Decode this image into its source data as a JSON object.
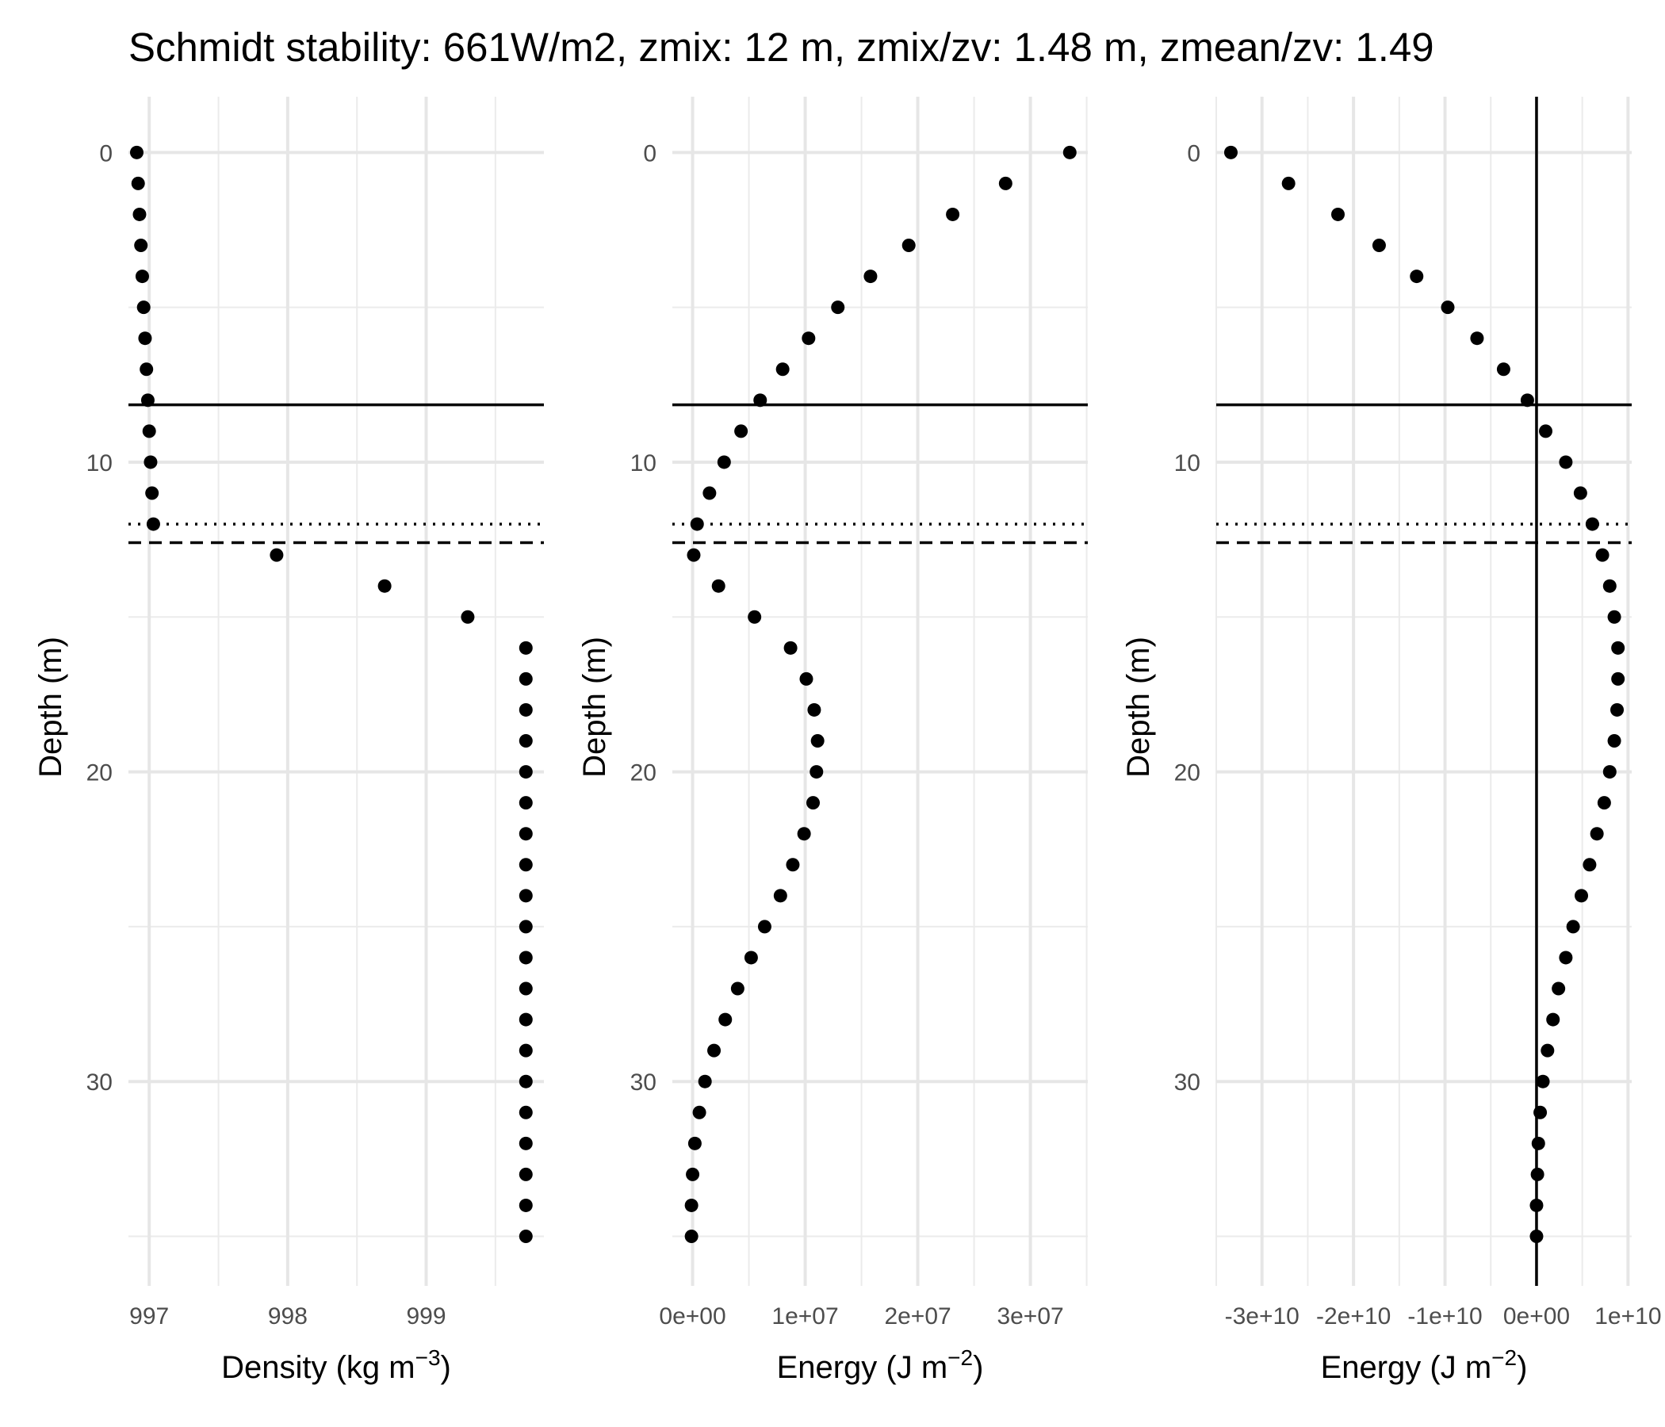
{
  "chart_data": {
    "title": "Schmidt stability: 661W/m2, zmix: 12 m, zmix/zv: 1.48 m, zmean/zv: 1.49",
    "panels": [
      {
        "type": "scatter",
        "xlabel_base": "Density (kg m",
        "xlabel_exp": "−3",
        "ylabel": "Depth (m)",
        "xlim": [
          996.85,
          999.85
        ],
        "ylim": [
          36.6,
          -1.8
        ],
        "y_reversed": true,
        "grid": true,
        "xticks": [
          997,
          998,
          999
        ],
        "xtick_labels": [
          "997",
          "998",
          "999"
        ],
        "yticks": [
          0,
          10,
          20,
          30
        ],
        "ytick_labels": [
          "0",
          "10",
          "20",
          "30"
        ],
        "vertical_lines": [],
        "x": [
          996.91,
          996.92,
          996.93,
          996.94,
          996.95,
          996.96,
          996.97,
          996.98,
          996.99,
          997.0,
          997.01,
          997.02,
          997.03,
          997.92,
          998.7,
          999.3,
          999.72,
          999.72,
          999.72,
          999.72,
          999.72,
          999.72,
          999.72,
          999.72,
          999.72,
          999.72,
          999.72,
          999.72,
          999.72,
          999.72,
          999.72,
          999.72,
          999.72,
          999.72,
          999.72,
          999.72
        ],
        "y": [
          0,
          1,
          2,
          3,
          4,
          5,
          6,
          7,
          8,
          9,
          10,
          11,
          12,
          13,
          14,
          15,
          16,
          17,
          18,
          19,
          20,
          21,
          22,
          23,
          24,
          25,
          26,
          27,
          28,
          29,
          30,
          31,
          32,
          33,
          34,
          35
        ]
      },
      {
        "type": "scatter",
        "xlabel_base": "Energy (J m",
        "xlabel_exp": "−2",
        "ylabel": "Depth (m)",
        "xlim": [
          -1800000,
          35100000
        ],
        "ylim": [
          36.6,
          -1.8
        ],
        "y_reversed": true,
        "grid": true,
        "xticks": [
          0,
          10000000,
          20000000,
          30000000
        ],
        "xtick_labels": [
          "0e+00",
          "1e+07",
          "2e+07",
          "3e+07"
        ],
        "yticks": [
          0,
          10,
          20,
          30
        ],
        "ytick_labels": [
          "0",
          "10",
          "20",
          "30"
        ],
        "vertical_lines": [],
        "x": [
          33500000,
          27800000,
          23100000,
          19200000,
          15800000,
          12900000,
          10300000,
          8000000,
          6000000,
          4300000,
          2800000,
          1500000,
          400000,
          100000,
          2300000,
          5500000,
          8700000,
          10100000,
          10800000,
          11100000,
          11000000,
          10700000,
          9900000,
          8900000,
          7800000,
          6400000,
          5200000,
          4000000,
          2900000,
          1900000,
          1100000,
          600000,
          200000,
          0,
          -100000,
          -100000
        ],
        "y": [
          0,
          1,
          2,
          3,
          4,
          5,
          6,
          7,
          8,
          9,
          10,
          11,
          12,
          13,
          14,
          15,
          16,
          17,
          18,
          19,
          20,
          21,
          22,
          23,
          24,
          25,
          26,
          27,
          28,
          29,
          30,
          31,
          32,
          33,
          34,
          35
        ]
      },
      {
        "type": "scatter",
        "xlabel_base": "Energy (J m",
        "xlabel_exp": "−2",
        "ylabel": "Depth (m)",
        "xlim": [
          -35000000000,
          10400000000
        ],
        "ylim": [
          36.6,
          -1.8
        ],
        "y_reversed": true,
        "grid": true,
        "xticks": [
          -30000000000,
          -20000000000,
          -10000000000,
          0,
          10000000000
        ],
        "xtick_labels": [
          "-3e+10",
          "-2e+10",
          "-1e+10",
          "0e+00",
          "1e+10"
        ],
        "yticks": [
          0,
          10,
          20,
          30
        ],
        "ytick_labels": [
          "0",
          "10",
          "20",
          "30"
        ],
        "vertical_lines": [
          0
        ],
        "x": [
          -33400000000,
          -27100000000,
          -21700000000,
          -17200000000,
          -13100000000,
          -9700000000,
          -6500000000,
          -3600000000,
          -1000000000,
          1000000000,
          3200000000,
          4800000000,
          6100000000,
          7200000000,
          8000000000,
          8500000000,
          8900000000,
          8900000000,
          8800000000,
          8500000000,
          8000000000,
          7400000000,
          6600000000,
          5800000000,
          4900000000,
          4000000000,
          3200000000,
          2400000000,
          1800000000,
          1200000000,
          700000000,
          400000000,
          200000000,
          100000000,
          0,
          0
        ],
        "y": [
          0,
          1,
          2,
          3,
          4,
          5,
          6,
          7,
          8,
          9,
          10,
          11,
          12,
          13,
          14,
          15,
          16,
          17,
          18,
          19,
          20,
          21,
          22,
          23,
          24,
          25,
          26,
          27,
          28,
          29,
          30,
          31,
          32,
          33,
          34,
          35
        ]
      }
    ],
    "reference_lines": [
      {
        "y": 8.15,
        "style": "solid"
      },
      {
        "y": 12.0,
        "style": "dotted"
      },
      {
        "y": 12.6,
        "style": "dashed"
      }
    ]
  }
}
